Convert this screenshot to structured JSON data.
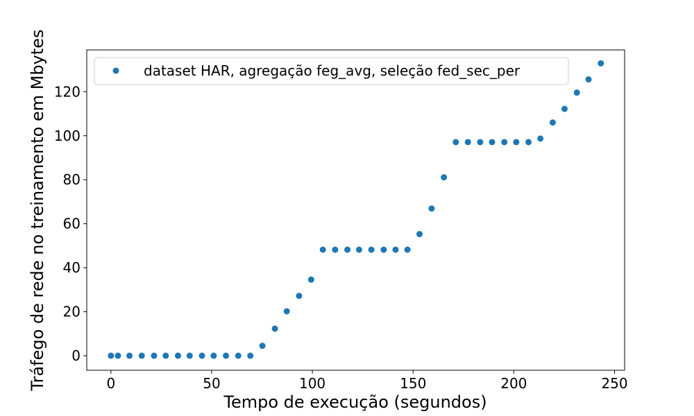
{
  "colors": {
    "series": "#1f77b4",
    "axes": "#000000",
    "background": "#ffffff",
    "legend_border": "#cccccc"
  },
  "chart_data": {
    "type": "scatter",
    "title": "",
    "xlabel": "Tempo de execução (segundos)",
    "ylabel": "Tráfego de rede no treinamento em Mbytes",
    "xlim": [
      -12,
      255
    ],
    "ylim": [
      -6.6,
      139
    ],
    "xticks": [
      0,
      50,
      100,
      150,
      200,
      250
    ],
    "yticks": [
      0,
      20,
      40,
      60,
      80,
      100,
      120
    ],
    "xtick_labels": [
      "0",
      "50",
      "100",
      "150",
      "200",
      "250"
    ],
    "ytick_labels": [
      "0",
      "20",
      "40",
      "60",
      "80",
      "100",
      "120"
    ],
    "grid": false,
    "legend_position": "upper-left",
    "series": [
      {
        "name": "dataset HAR, agregação feg_avg, seleção fed_sec_per",
        "marker": "circle",
        "x": [
          0,
          3.5,
          9.2,
          15.3,
          21.4,
          27.2,
          33.3,
          39.1,
          45.2,
          51.0,
          57.1,
          63.2,
          69.2,
          75.2,
          81.4,
          87.3,
          93.4,
          99.4,
          105.2,
          111.3,
          117.4,
          123.2,
          129.3,
          135.4,
          141.3,
          147.2,
          153.2,
          159.2,
          165.3,
          171.2,
          177.2,
          183.3,
          189.2,
          195.3,
          201.2,
          207.3,
          213.2,
          219.3,
          225.2,
          231.3,
          237.1,
          243.2
        ],
        "y": [
          0,
          0,
          0,
          0,
          0,
          0,
          0,
          0,
          0,
          0,
          0,
          0,
          0,
          4.5,
          12.3,
          20.2,
          27.2,
          34.6,
          48.2,
          48.2,
          48.2,
          48.2,
          48.2,
          48.2,
          48.2,
          48.2,
          55.3,
          66.9,
          81.1,
          97.1,
          97.1,
          97.1,
          97.1,
          97.1,
          97.1,
          97.1,
          98.7,
          106.0,
          112.2,
          119.6,
          125.6,
          132.9
        ]
      }
    ]
  }
}
